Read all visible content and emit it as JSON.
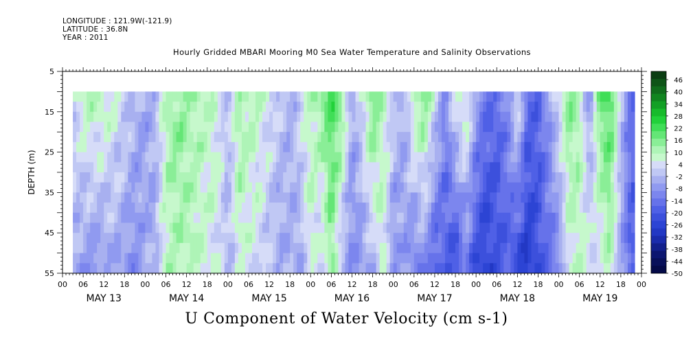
{
  "header": {
    "longitude": "LONGITUDE : 121.9W(-121.9)",
    "latitude": "LATITUDE : 36.8N",
    "year": "YEAR : 2011"
  },
  "chart_data": {
    "type": "heatmap",
    "title": "Hourly Gridded MBARI Mooring M0 Sea Water Temperature and Salinity Observations",
    "xlabel": "U Component of Water Velocity (cm s-1)",
    "ylabel": "DEPTH (m)",
    "ylim": [
      5,
      55
    ],
    "yticks": [
      5,
      15,
      25,
      35,
      45,
      55
    ],
    "y_reversed": true,
    "xlim_hours": [
      0,
      168
    ],
    "x_hour_ticks": [
      "00",
      "06",
      "12",
      "18",
      "00",
      "06",
      "12",
      "18",
      "00",
      "06",
      "12",
      "18",
      "00",
      "06",
      "12",
      "18",
      "00",
      "06",
      "12",
      "18",
      "00",
      "06",
      "12",
      "18",
      "00",
      "06",
      "12",
      "18",
      "00"
    ],
    "x_day_labels": [
      "MAY 13",
      "MAY 14",
      "MAY 15",
      "MAY 16",
      "MAY 17",
      "MAY 18",
      "MAY 19"
    ],
    "data_start_hour": 3,
    "data_end_hour": 166,
    "data_depth_range": [
      10,
      55
    ],
    "colorbar": {
      "labels": [
        "46",
        "40",
        "34",
        "28",
        "22",
        "16",
        "10",
        "4",
        "-2",
        "-8",
        "-14",
        "-20",
        "-26",
        "-32",
        "-38",
        "-44",
        "-50"
      ],
      "colors": [
        "#0b3d12",
        "#0e5417",
        "#106c1c",
        "#118520",
        "#13a025",
        "#18bb2c",
        "#22d13a",
        "#40de57",
        "#64e676",
        "#8aee97",
        "#aef4b7",
        "#c6f8cc",
        "#d6dcf8",
        "#c0c8f4",
        "#a8b0f0",
        "#909af0",
        "#7c86ee",
        "#6672ea",
        "#4f60e6",
        "#3c50dc",
        "#2c44d4",
        "#2238c4",
        "#1a2cac",
        "#12208c",
        "#0c1670",
        "#08105a",
        "#040a48"
      ]
    },
    "velocity_profile_hours": [
      3,
      6,
      9,
      12,
      15,
      18,
      21,
      24,
      27,
      30,
      33,
      36,
      39,
      42,
      45,
      48,
      51,
      54,
      57,
      60,
      63,
      66,
      69,
      72,
      75,
      78,
      81,
      84,
      87,
      90,
      93,
      96,
      99,
      102,
      105,
      108,
      111,
      114,
      117,
      120,
      123,
      126,
      129,
      132,
      135,
      138,
      141,
      144,
      147,
      150,
      153,
      156,
      159,
      162,
      165
    ],
    "velocity_surface": [
      2,
      8,
      10,
      9,
      6,
      1,
      -3,
      -6,
      -4,
      10,
      14,
      12,
      10,
      8,
      6,
      -2,
      12,
      10,
      8,
      4,
      0,
      -4,
      2,
      8,
      14,
      22,
      16,
      -6,
      4,
      18,
      8,
      2,
      -6,
      12,
      16,
      4,
      -12,
      6,
      10,
      -6,
      -14,
      -18,
      -10,
      6,
      -16,
      -18,
      -8,
      4,
      16,
      10,
      -10,
      18,
      22,
      -2,
      -16
    ],
    "velocity_bottom": [
      -4,
      -8,
      -10,
      -8,
      -6,
      -8,
      -10,
      -6,
      -4,
      8,
      10,
      10,
      8,
      6,
      4,
      -4,
      6,
      4,
      2,
      -2,
      -6,
      -4,
      -6,
      8,
      -2,
      14,
      -4,
      -10,
      -8,
      -4,
      8,
      -12,
      -6,
      -14,
      -10,
      -20,
      -18,
      -26,
      -14,
      -24,
      -28,
      -22,
      -20,
      -26,
      -30,
      -24,
      -16,
      -12,
      4,
      8,
      6,
      2,
      10,
      -6,
      -20
    ]
  }
}
